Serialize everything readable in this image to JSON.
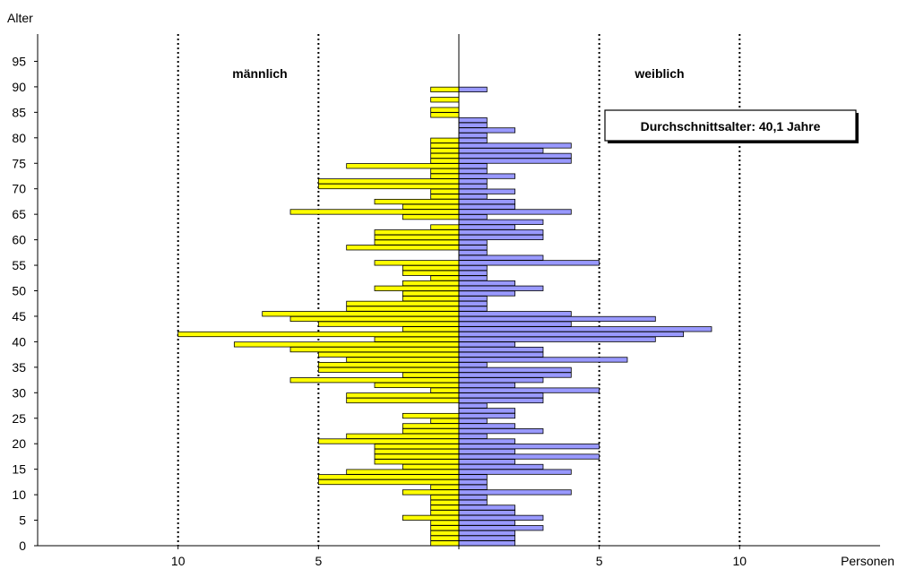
{
  "chart_data": {
    "type": "bar",
    "orientation": "horizontal",
    "subtype": "population pyramid",
    "y_axis_label": "Alter",
    "x_axis_label": "Personen",
    "y_ticks": [
      "0",
      "5",
      "10",
      "15",
      "20",
      "25",
      "30",
      "35",
      "40",
      "45",
      "50",
      "55",
      "60",
      "65",
      "70",
      "75",
      "80",
      "85",
      "90",
      "95"
    ],
    "x_ticks": [
      "10",
      "5",
      "",
      "5",
      "10"
    ],
    "x_tick_values": [
      -10,
      -5,
      0,
      5,
      10
    ],
    "xlim": [
      -15,
      15
    ],
    "ylim": [
      0,
      99
    ],
    "grid": "vertical dotted at 10, 5, 5, 10",
    "series": [
      {
        "name": "männlich",
        "color": "#ffff00",
        "ages": [
          0,
          1,
          2,
          3,
          4,
          5,
          6,
          7,
          8,
          9,
          10,
          11,
          12,
          13,
          14,
          15,
          16,
          17,
          18,
          19,
          20,
          21,
          22,
          23,
          24,
          25,
          26,
          27,
          28,
          29,
          30,
          31,
          32,
          33,
          34,
          35,
          36,
          37,
          38,
          39,
          40,
          41,
          42,
          43,
          44,
          45,
          46,
          47,
          48,
          49,
          50,
          51,
          52,
          53,
          54,
          55,
          56,
          57,
          58,
          59,
          60,
          61,
          62,
          63,
          64,
          65,
          66,
          67,
          68,
          69,
          70,
          71,
          72,
          73,
          74,
          75,
          76,
          77,
          78,
          79,
          80,
          81,
          82,
          83,
          84,
          85,
          86,
          87,
          88,
          89
        ],
        "values": [
          1,
          1,
          1,
          1,
          1,
          2,
          1,
          1,
          1,
          1,
          2,
          1,
          5,
          5,
          4,
          2,
          3,
          3,
          3,
          3,
          5,
          4,
          2,
          2,
          1,
          2,
          0,
          0,
          4,
          4,
          1,
          3,
          6,
          2,
          5,
          5,
          4,
          5,
          6,
          8,
          3,
          10,
          2,
          5,
          6,
          7,
          4,
          4,
          2,
          2,
          3,
          2,
          1,
          2,
          2,
          3,
          0,
          0,
          4,
          3,
          3,
          3,
          1,
          0,
          2,
          6,
          2,
          3,
          1,
          1,
          5,
          5,
          1,
          1,
          4,
          1,
          1,
          1,
          1,
          1,
          0,
          0,
          0,
          0,
          1,
          1,
          0,
          1,
          0,
          1
        ]
      },
      {
        "name": "weiblich",
        "color": "#9999ff",
        "ages": [
          0,
          1,
          2,
          3,
          4,
          5,
          6,
          7,
          8,
          9,
          10,
          11,
          12,
          13,
          14,
          15,
          16,
          17,
          18,
          19,
          20,
          21,
          22,
          23,
          24,
          25,
          26,
          27,
          28,
          29,
          30,
          31,
          32,
          33,
          34,
          35,
          36,
          37,
          38,
          39,
          40,
          41,
          42,
          43,
          44,
          45,
          46,
          47,
          48,
          49,
          50,
          51,
          52,
          53,
          54,
          55,
          56,
          57,
          58,
          59,
          60,
          61,
          62,
          63,
          64,
          65,
          66,
          67,
          68,
          69,
          70,
          71,
          72,
          73,
          74,
          75,
          76,
          77,
          78,
          79,
          80,
          81,
          82,
          83,
          84,
          85,
          86,
          87,
          88,
          89
        ],
        "values": [
          2,
          2,
          2,
          3,
          2,
          3,
          2,
          2,
          1,
          1,
          4,
          1,
          1,
          1,
          4,
          3,
          2,
          5,
          2,
          5,
          2,
          1,
          3,
          2,
          1,
          2,
          2,
          1,
          3,
          3,
          5,
          2,
          3,
          4,
          4,
          1,
          6,
          3,
          3,
          2,
          7,
          8,
          9,
          4,
          7,
          4,
          1,
          1,
          1,
          2,
          3,
          2,
          1,
          1,
          1,
          5,
          3,
          1,
          1,
          1,
          3,
          3,
          2,
          3,
          1,
          4,
          2,
          2,
          1,
          2,
          1,
          1,
          2,
          1,
          1,
          4,
          4,
          3,
          4,
          1,
          1,
          2,
          1,
          1,
          0,
          0,
          0,
          0,
          0,
          1
        ]
      }
    ],
    "annotations": {
      "male_label": "männlich",
      "female_label": "weiblich",
      "average_box": "Durchschnittsalter: 40,1 Jahre"
    }
  }
}
